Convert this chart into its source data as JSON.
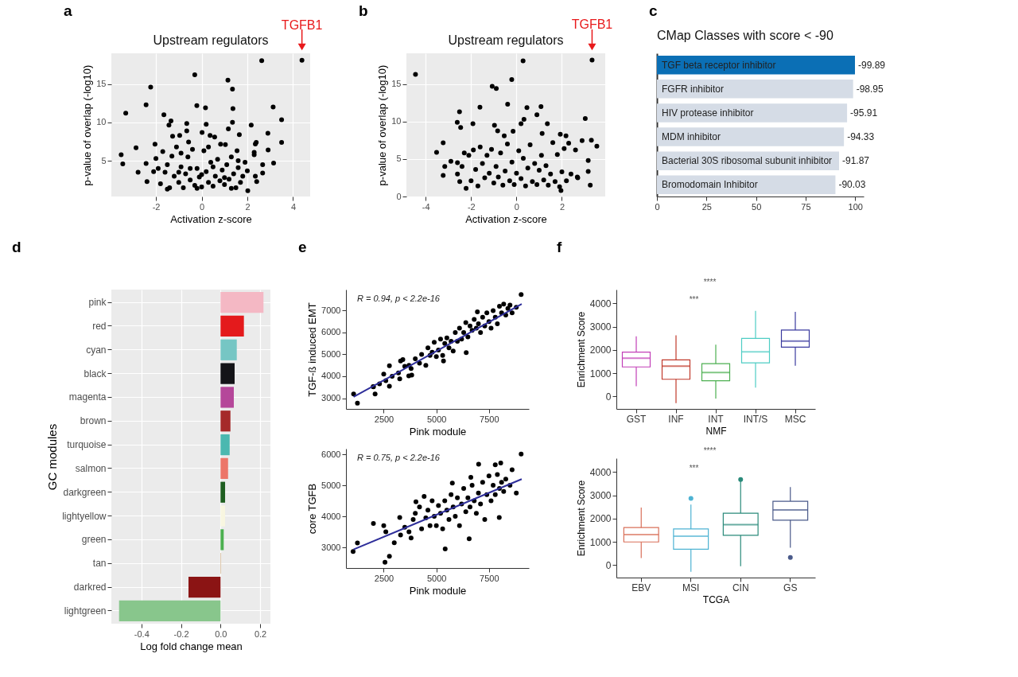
{
  "chart_data": [
    {
      "type": "scatter",
      "title": "Upstream regulators",
      "xlabel": "Activation z-score",
      "ylabel": "p-value of overlap (-log10)",
      "xlim": [
        -3.95,
        4.75
      ],
      "ylim": [
        0.35,
        19
      ],
      "xticks": [
        -2,
        0,
        2,
        4
      ],
      "yticks": [
        5,
        10,
        15
      ],
      "grid": true,
      "marker": "circle",
      "color": "#000000",
      "annotations": [
        "a",
        {
          "text": "TGFB1",
          "x": 4.39,
          "y": 18.1
        }
      ],
      "x": [
        4.39,
        2.63,
        -0.3,
        1.15,
        1.35,
        -2.23,
        -2.43,
        -0.21,
        0.17,
        1.37,
        3.13,
        -3.32,
        -1.65,
        -1.34,
        3.5,
        1.35,
        -0.65,
        0.2,
        2.17,
        -1.43,
        1.17,
        -0.65,
        0.02,
        2.9,
        0.37,
        1.65,
        -0.96,
        -1.27,
        0.57,
        3.5,
        -0.57,
        2.35,
        -2.04,
        -2.87,
        0.83,
        1.04,
        2.91,
        3.15,
        2.67,
        -3.52,
        -3.45,
        -2.78,
        -2.43,
        -2.39,
        2.67,
        2.41,
        2.02,
        2.39,
        1.55,
        -2.0,
        -1.9,
        -1.8,
        -1.7,
        -1.6,
        -1.5,
        -1.4,
        -1.3,
        -1.2,
        -1.1,
        -1.0,
        -0.9,
        -0.8,
        -0.7,
        -0.6,
        -0.5,
        -0.4,
        -0.3,
        -0.2,
        -0.1,
        0.0,
        0.1,
        0.2,
        0.3,
        0.4,
        0.5,
        0.6,
        0.7,
        0.8,
        0.9,
        1.0,
        1.1,
        1.2,
        1.3,
        1.4,
        1.5,
        1.6,
        1.7,
        1.8,
        1.9,
        2.0,
        -1.5,
        0.5,
        -0.5,
        1.0,
        -1.0,
        0.0,
        0.3,
        -0.9,
        1.6,
        -2.1,
        -0.2,
        1.3,
        2.3,
        2.35,
        2.3
      ],
      "values": [
        18.1,
        18.05,
        16.2,
        15.5,
        14.35,
        14.6,
        12.3,
        12.2,
        11.9,
        11.8,
        12.0,
        11.2,
        11.0,
        10.2,
        10.35,
        10.0,
        9.85,
        9.75,
        9.65,
        9.65,
        9.15,
        8.9,
        8.7,
        8.6,
        8.3,
        8.4,
        8.3,
        8.2,
        8.1,
        7.4,
        7.45,
        7.2,
        7.15,
        6.7,
        7.15,
        7.1,
        6.4,
        4.7,
        4.5,
        5.8,
        4.6,
        3.5,
        4.65,
        2.3,
        3.4,
        2.3,
        1.1,
        7.4,
        6.3,
        5.3,
        4.0,
        2.0,
        6.2,
        3.5,
        4.5,
        1.5,
        5.6,
        3.0,
        6.8,
        2.2,
        4.2,
        1.5,
        3.3,
        5.5,
        2.5,
        6.5,
        1.8,
        4.0,
        2.9,
        1.6,
        6.3,
        3.6,
        2.2,
        4.8,
        1.7,
        3.0,
        5.2,
        2.4,
        3.8,
        1.9,
        4.5,
        2.6,
        5.5,
        3.3,
        1.5,
        4.1,
        2.2,
        3.0,
        4.8,
        3.7,
        1.3,
        4.2,
        4.0,
        2.8,
        3.5,
        3.2,
        6.8,
        6.0,
        5.0,
        3.6,
        1.4,
        1.4,
        6.1,
        3.0,
        5.8
      ]
    },
    {
      "type": "scatter",
      "title": "Upstream regulators",
      "xlabel": "Activation z-score",
      "ylabel": "p-value of overlap (-log10)",
      "xlim": [
        -4.85,
        3.91
      ],
      "ylim": [
        0,
        19.1
      ],
      "xticks": [
        -4,
        -2,
        0,
        2
      ],
      "yticks": [
        0,
        5,
        10,
        15
      ],
      "grid": true,
      "marker": "circle",
      "color": "#000000",
      "annotations": [
        "b",
        {
          "text": "TGFB1",
          "x": 3.33,
          "y": 18.2
        }
      ],
      "x": [
        3.33,
        0.29,
        -4.45,
        -0.21,
        -1.07,
        -0.89,
        -0.39,
        -1.61,
        0.46,
        1.08,
        -2.51,
        0.9,
        3.03,
        0.33,
        -2.61,
        -1.92,
        1.36,
        -0.97,
        0.2,
        -2.46,
        -0.83,
        -0.15,
        1.13,
        -0.54,
        1.93,
        2.18,
        2.89,
        3.3,
        3.54,
        -3.23,
        -3.52,
        -2.89,
        -3.16,
        -3.23,
        3.16,
        3.16,
        3.25,
        2.68,
        1.96,
        -2.22,
        -1.9,
        -1.8,
        -1.7,
        -1.6,
        -1.5,
        -1.4,
        -1.3,
        -1.2,
        -1.1,
        -1.0,
        -0.9,
        -0.8,
        -0.7,
        -0.6,
        -0.5,
        -0.4,
        -0.3,
        -0.2,
        -0.1,
        0.0,
        0.1,
        0.2,
        0.3,
        0.4,
        0.5,
        0.6,
        0.7,
        0.8,
        0.9,
        1.0,
        1.1,
        1.2,
        1.3,
        1.4,
        1.5,
        1.6,
        1.7,
        1.8,
        1.9,
        2.0,
        2.1,
        2.2,
        2.3,
        2.4,
        2.6,
        2.7,
        -2.1,
        -2.0,
        -2.3,
        -2.6,
        -2.6,
        -2.5,
        -2.4
      ],
      "values": [
        18.2,
        18.1,
        16.3,
        15.6,
        14.7,
        14.4,
        12.3,
        11.9,
        11.85,
        12.0,
        11.3,
        10.9,
        10.4,
        10.3,
        9.9,
        9.7,
        9.7,
        9.5,
        9.7,
        9.2,
        8.75,
        8.7,
        8.4,
        8.1,
        8.3,
        8.1,
        7.45,
        7.5,
        6.7,
        7.15,
        5.9,
        4.7,
        4.0,
        2.8,
        4.8,
        3.35,
        1.5,
        2.6,
        0.8,
        1.1,
        6.2,
        3.6,
        1.4,
        6.6,
        4.4,
        2.5,
        5.5,
        3.1,
        6.3,
        1.8,
        4.0,
        2.6,
        5.8,
        1.5,
        3.4,
        7.0,
        2.1,
        4.6,
        1.6,
        3.1,
        6.1,
        2.4,
        5.1,
        1.4,
        3.8,
        6.9,
        2.0,
        4.4,
        1.6,
        3.5,
        5.5,
        2.2,
        4.1,
        1.5,
        3.0,
        7.2,
        2.0,
        5.6,
        1.3,
        3.3,
        6.4,
        2.1,
        7.1,
        3.0,
        6.2,
        2.5,
        5.5,
        2.1,
        5.8,
        4.5,
        3.0,
        2.0,
        4.0
      ]
    },
    {
      "type": "bar",
      "orientation": "horizontal",
      "title": "CMap Classes with score < -90",
      "annotations": [
        "c"
      ],
      "categories": [
        "TGF beta receptor inhibitor",
        "FGFR inhibitor",
        "HIV protease inhibitor",
        "MDM inhibitor",
        "Bacterial 30S ribosomal subunit inhibitor",
        "Bromodomain Inhibitor"
      ],
      "values": [
        -99.89,
        -98.95,
        -95.91,
        -94.33,
        -91.87,
        -90.03
      ],
      "value_labels": [
        "-99.89",
        "-98.95",
        "-95.91",
        "-94.33",
        "-91.87",
        "-90.03"
      ],
      "colors": [
        "#0b6fb5",
        "#d5dce6",
        "#d5dce6",
        "#d5dce6",
        "#d5dce6",
        "#d5dce6"
      ],
      "xlim": [
        0,
        -104.3
      ],
      "xticks": [
        0,
        {
          "value": -25,
          "label": "25"
        },
        {
          "value": -50,
          "label": "50"
        },
        {
          "value": -75,
          "label": "75"
        },
        {
          "value": -100,
          "label": "100"
        }
      ]
    },
    {
      "type": "bar",
      "orientation": "horizontal",
      "xlabel": "Log fold change mean",
      "ylabel": "GC modules",
      "annotations": [
        "d"
      ],
      "grid": true,
      "categories": [
        "pink",
        "red",
        "cyan",
        "black",
        "magenta",
        "brown",
        "turquoise",
        "salmon",
        "darkgreen",
        "lightyellow",
        "green",
        "tan",
        "darkred",
        "lightgreen"
      ],
      "values": [
        0.217,
        0.118,
        0.082,
        0.071,
        0.067,
        0.05,
        0.046,
        0.038,
        0.023,
        0.023,
        0.016,
        0.003,
        -0.162,
        -0.513
      ],
      "colors": [
        "#f4b8c4",
        "#e41a1c",
        "#76c6c4",
        "#141418",
        "#b5479a",
        "#a52a2a",
        "#4bb8b0",
        "#ec7669",
        "#1e5e20",
        "#f8f6e0",
        "#4cb050",
        "#d2b48c",
        "#8b1414",
        "#88c68c"
      ],
      "xlim": [
        -0.552,
        0.252
      ],
      "xticks": [
        -0.4,
        -0.2,
        {
          "value": 0,
          "label": "0.0"
        },
        0.2
      ]
    },
    {
      "type": "scatter",
      "xlabel": "Pink module",
      "ylabel": "TGF-ß induced EMT",
      "xlim": [
        705,
        9398
      ],
      "ylim": [
        2510,
        7960
      ],
      "xticks": [
        2500,
        5000,
        7500
      ],
      "yticks": [
        3000,
        4000,
        5000,
        6000,
        7000
      ],
      "marker": "circle",
      "annotations": [
        "e",
        "R = 0.94, p < 2.2e-16"
      ],
      "series": [
        {
          "type": "scatter",
          "color": "#000000",
          "x": [
            1068,
            1250,
            2090,
            2010,
            2770,
            2770,
            9030,
            3690,
            3830,
            3260,
            3410,
            6950,
            6420,
            5340,
            2000,
            2300,
            2500,
            2600,
            2900,
            3200,
            3300,
            3500,
            3700,
            3800,
            4000,
            4200,
            4300,
            4500,
            4600,
            4700,
            4800,
            4900,
            5000,
            5100,
            5200,
            5300,
            5400,
            5500,
            5600,
            5700,
            5800,
            5900,
            6000,
            6100,
            6200,
            6300,
            6400,
            6500,
            6600,
            6700,
            6800,
            6900,
            7000,
            7100,
            7200,
            7300,
            7400,
            7500,
            7600,
            7700,
            7800,
            7900,
            8000,
            8100,
            8200,
            8300,
            8400,
            8500,
            8600,
            8800
          ],
          "values": [
            3190,
            2770,
            3190,
            3520,
            4480,
            3550,
            7730,
            4020,
            4050,
            3880,
            4760,
            6940,
            5080,
            4700,
            3530,
            3650,
            4100,
            3800,
            4000,
            4150,
            4700,
            4450,
            4500,
            4350,
            4800,
            4600,
            5000,
            4500,
            5300,
            4950,
            5100,
            5550,
            4900,
            5200,
            5700,
            4950,
            5500,
            5750,
            5300,
            5600,
            5150,
            6000,
            5600,
            6200,
            5700,
            6000,
            6450,
            5800,
            6300,
            6100,
            6600,
            6200,
            6400,
            6000,
            6700,
            6300,
            6900,
            6500,
            6200,
            7000,
            6700,
            6400,
            7200,
            6900,
            7300,
            6800,
            7100,
            7250,
            6900,
            7150
          ]
        },
        {
          "type": "line",
          "marker": "none",
          "color": "#2e2e9a",
          "x": [
            1068,
            9057
          ],
          "values": [
            3057,
            7302
          ]
        }
      ]
    },
    {
      "type": "scatter",
      "xlabel": "Pink module",
      "ylabel": "core TGFB",
      "xlim": [
        705,
        9398
      ],
      "ylim": [
        2335,
        6180
      ],
      "xticks": [
        2500,
        5000,
        7500
      ],
      "yticks": [
        3000,
        4000,
        5000,
        6000
      ],
      "marker": "circle",
      "annotations": [
        "R = 0.75, p < 2.2e-16"
      ],
      "series": [
        {
          "type": "scatter",
          "color": "#000000",
          "x": [
            1045,
            1250,
            2010,
            2560,
            2770,
            5420,
            6560,
            9030,
            7010,
            7800,
            8060,
            4030,
            4420,
            5760,
            6640,
            7990,
            3260,
            2500,
            2600,
            3000,
            3300,
            3500,
            3700,
            3800,
            3900,
            4000,
            4200,
            4300,
            4500,
            4600,
            4700,
            4800,
            4900,
            5000,
            5100,
            5200,
            5300,
            5400,
            5500,
            5600,
            5700,
            5800,
            5900,
            6000,
            6100,
            6200,
            6300,
            6400,
            6500,
            6600,
            6700,
            6800,
            6900,
            7000,
            7100,
            7200,
            7300,
            7400,
            7500,
            7600,
            7700,
            7800,
            7900,
            8000,
            8100,
            8200,
            8300,
            8500,
            8600,
            8800
          ],
          "values": [
            2870,
            3140,
            3770,
            2520,
            2710,
            2950,
            3280,
            6010,
            5680,
            5660,
            5720,
            4470,
            4640,
            5070,
            5260,
            3960,
            3960,
            3700,
            3500,
            3150,
            3400,
            3650,
            3500,
            3300,
            3900,
            4100,
            4300,
            3600,
            3950,
            4200,
            3700,
            4500,
            4000,
            3700,
            4350,
            4100,
            3600,
            4500,
            4200,
            3900,
            4700,
            4300,
            4000,
            4600,
            3700,
            4400,
            4900,
            4150,
            4600,
            4300,
            5000,
            4500,
            4100,
            4750,
            4400,
            5100,
            3900,
            4700,
            5300,
            4500,
            5000,
            4700,
            5350,
            4900,
            5100,
            4800,
            5200,
            5000,
            5500,
            4750
          ]
        },
        {
          "type": "line",
          "marker": "none",
          "color": "#2e2e9a",
          "x": [
            1068,
            9057
          ],
          "values": [
            2934,
            5199
          ]
        }
      ]
    },
    {
      "type": "box",
      "xlabel": "NMF",
      "ylabel": "Enrichment Score",
      "ylim": [
        -530,
        4590
      ],
      "yticks": [
        0,
        1000,
        2000,
        3000,
        4000
      ],
      "annotations": [
        "f",
        "****",
        "***"
      ],
      "categories": [
        "GST",
        "INF",
        "INT",
        "INT/S",
        "MSC"
      ],
      "colors": [
        "#c23fb8",
        "#c0392b",
        "#4caf50",
        "#4ecdc4",
        "#3a3a9e"
      ],
      "boxes": [
        {
          "low": 441,
          "q1": 1271,
          "median": 1642,
          "q3": 1907,
          "high": 2586
        },
        {
          "low": -282,
          "q1": 741,
          "median": 1306,
          "q3": 1571,
          "high": 2630
        },
        {
          "low": -88,
          "q1": 680,
          "median": 1033,
          "q3": 1412,
          "high": 2224
        },
        {
          "low": 380,
          "q1": 1448,
          "median": 1915,
          "q3": 2498,
          "high": 3680
        },
        {
          "low": 1324,
          "q1": 2118,
          "median": 2383,
          "q3": 2851,
          "high": 3636
        }
      ]
    },
    {
      "type": "box",
      "xlabel": "TCGA",
      "ylabel": "Enrichment Score",
      "ylim": [
        -530,
        4590
      ],
      "yticks": [
        0,
        1000,
        2000,
        3000,
        4000
      ],
      "annotations": [
        "****",
        "***"
      ],
      "categories": [
        "EBV",
        "MSI",
        "CIN",
        "GS"
      ],
      "colors": [
        "#d9705a",
        "#4eb3d3",
        "#2a8a7a",
        "#4a5a8a"
      ],
      "boxes": [
        {
          "low": 309,
          "q1": 997,
          "median": 1315,
          "q3": 1615,
          "high": 2471
        },
        {
          "low": -282,
          "q1": 688,
          "median": 1244,
          "q3": 1553,
          "high": 2604,
          "outliers": [
            2868
          ]
        },
        {
          "low": -44,
          "q1": 1280,
          "median": 1739,
          "q3": 2233,
          "high": 3630,
          "outliers": [
            3680
          ]
        },
        {
          "low": 750,
          "q1": 1933,
          "median": 2374,
          "q3": 2745,
          "high": 3354,
          "outliers": [
            335
          ]
        }
      ]
    }
  ]
}
